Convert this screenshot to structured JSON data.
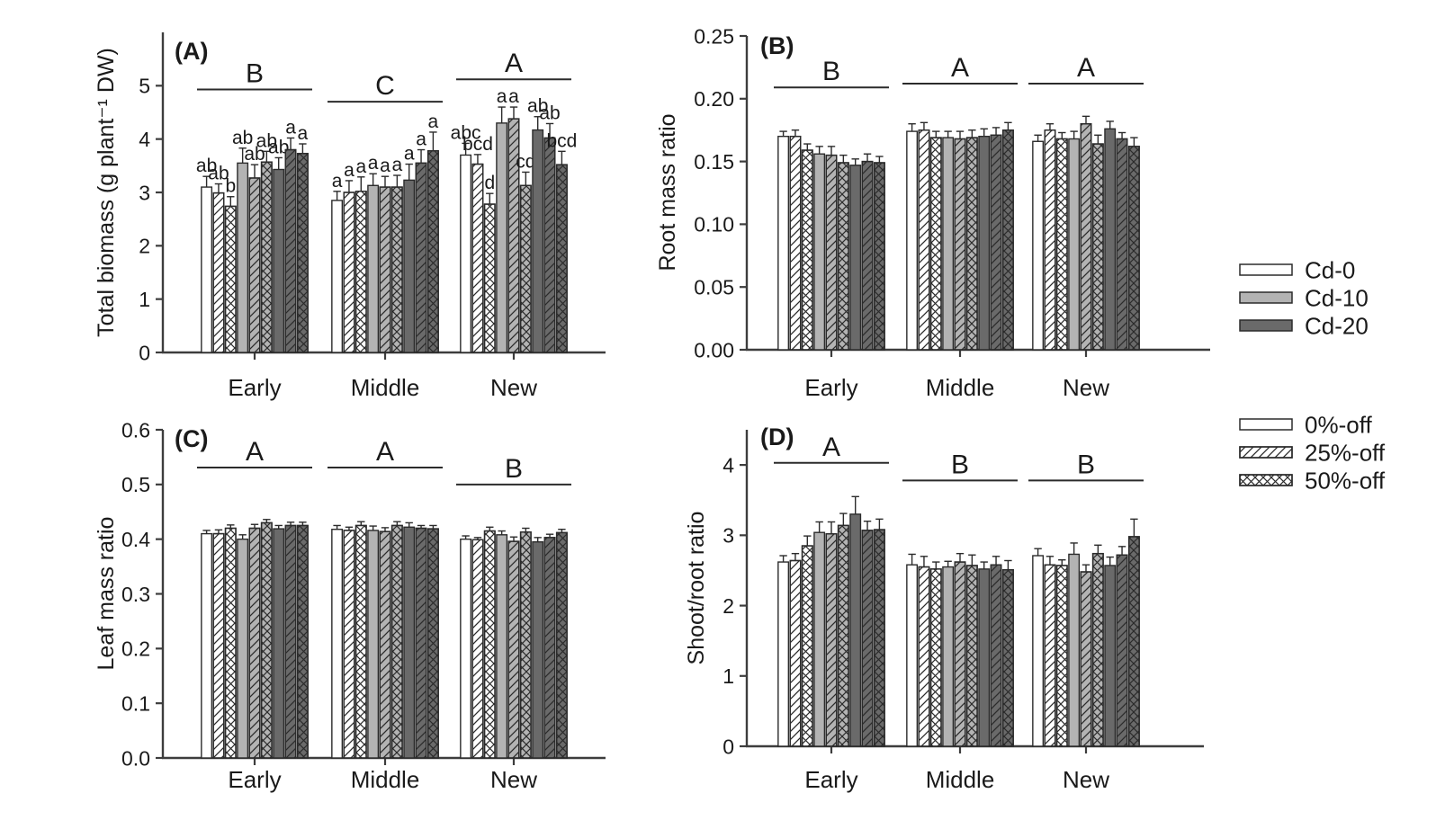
{
  "figure": {
    "title": "Four-panel bar figure: biomass and allocation ratios under Cd and defoliation treatments",
    "categories": [
      "Early",
      "Middle",
      "New"
    ]
  },
  "colors": {
    "background": "#ffffff",
    "cd0_fill": "#ffffff",
    "cd10_fill": "#b3b3b3",
    "cd20_fill": "#6a6a6a",
    "bar_stroke": "#2b2b2b",
    "axis": "#3d3d3d",
    "text": "#1a1a1a"
  },
  "series_styles": [
    {
      "cd": "Cd-0",
      "defoliation": "0%-off",
      "fill": "#ffffff",
      "pattern": "none"
    },
    {
      "cd": "Cd-0",
      "defoliation": "25%-off",
      "fill": "#ffffff",
      "pattern": "diag"
    },
    {
      "cd": "Cd-0",
      "defoliation": "50%-off",
      "fill": "#ffffff",
      "pattern": "cross"
    },
    {
      "cd": "Cd-10",
      "defoliation": "0%-off",
      "fill": "#b3b3b3",
      "pattern": "none"
    },
    {
      "cd": "Cd-10",
      "defoliation": "25%-off",
      "fill": "#b3b3b3",
      "pattern": "diag"
    },
    {
      "cd": "Cd-10",
      "defoliation": "50%-off",
      "fill": "#b3b3b3",
      "pattern": "cross"
    },
    {
      "cd": "Cd-20",
      "defoliation": "0%-off",
      "fill": "#6a6a6a",
      "pattern": "none"
    },
    {
      "cd": "Cd-20",
      "defoliation": "25%-off",
      "fill": "#6a6a6a",
      "pattern": "diag"
    },
    {
      "cd": "Cd-20",
      "defoliation": "50%-off",
      "fill": "#6a6a6a",
      "pattern": "cross"
    }
  ],
  "legends": {
    "cd": {
      "items": [
        {
          "label": "Cd-0",
          "fill": "#ffffff",
          "pattern": "none"
        },
        {
          "label": "Cd-10",
          "fill": "#b3b3b3",
          "pattern": "none"
        },
        {
          "label": "Cd-20",
          "fill": "#6a6a6a",
          "pattern": "none"
        }
      ]
    },
    "defoliation": {
      "items": [
        {
          "label": "0%-off",
          "fill": "#ffffff",
          "pattern": "none"
        },
        {
          "label": "25%-off",
          "fill": "#ffffff",
          "pattern": "diag"
        },
        {
          "label": "50%-off",
          "fill": "#ffffff",
          "pattern": "cross"
        }
      ]
    }
  },
  "chart_data": [
    {
      "type": "bar",
      "panel_label": "(A)",
      "ylabel": "Total biomass (g plant⁻¹ DW)",
      "ylim": [
        0,
        6
      ],
      "ytick_values": [
        0,
        1,
        2,
        3,
        4,
        5
      ],
      "ytick_labels": [
        "0",
        "1",
        "2",
        "3",
        "4",
        "5"
      ],
      "categories": [
        "Early",
        "Middle",
        "New"
      ],
      "group_significance": [
        {
          "letter": "B",
          "line_y": 4.93
        },
        {
          "letter": "C",
          "line_y": 4.7
        },
        {
          "letter": "A",
          "line_y": 5.12
        }
      ],
      "groups": [
        {
          "category": "Early",
          "values": [
            3.1,
            2.99,
            2.74,
            3.55,
            3.27,
            3.57,
            3.43,
            3.8,
            3.73
          ],
          "errors": [
            0.2,
            0.17,
            0.18,
            0.28,
            0.25,
            0.2,
            0.22,
            0.22,
            0.18
          ],
          "bar_letters": [
            "ab",
            "ab",
            "b",
            "ab",
            "ab",
            "ab",
            "ab",
            "a",
            "a"
          ]
        },
        {
          "category": "Middle",
          "values": [
            2.85,
            3.0,
            3.02,
            3.13,
            3.1,
            3.1,
            3.23,
            3.55,
            3.78
          ],
          "errors": [
            0.17,
            0.22,
            0.27,
            0.22,
            0.2,
            0.22,
            0.3,
            0.25,
            0.35
          ],
          "bar_letters": [
            "a",
            "a",
            "a",
            "a",
            "a",
            "a",
            "a",
            "a",
            "a"
          ]
        },
        {
          "category": "New",
          "values": [
            3.7,
            3.53,
            2.78,
            4.3,
            4.38,
            3.13,
            4.17,
            4.02,
            3.52
          ],
          "errors": [
            0.22,
            0.18,
            0.2,
            0.3,
            0.22,
            0.25,
            0.25,
            0.27,
            0.25
          ],
          "bar_letters": [
            "abc",
            "bcd",
            "d",
            "a",
            "a",
            "cd",
            "ab",
            "ab",
            "bcd"
          ]
        }
      ]
    },
    {
      "type": "bar",
      "panel_label": "(B)",
      "ylabel": "Root mass ratio",
      "ylim": [
        0,
        0.25
      ],
      "ytick_values": [
        0,
        0.05,
        0.1,
        0.15,
        0.2,
        0.25
      ],
      "ytick_labels": [
        "0.00",
        "0.05",
        "0.10",
        "0.15",
        "0.20",
        "0.25"
      ],
      "categories": [
        "Early",
        "Middle",
        "New"
      ],
      "group_significance": [
        {
          "letter": "B",
          "line_y": 0.209
        },
        {
          "letter": "A",
          "line_y": 0.212
        },
        {
          "letter": "A",
          "line_y": 0.212
        }
      ],
      "groups": [
        {
          "category": "Early",
          "values": [
            0.17,
            0.17,
            0.159,
            0.156,
            0.155,
            0.149,
            0.147,
            0.15,
            0.149
          ],
          "errors": [
            0.004,
            0.005,
            0.005,
            0.006,
            0.007,
            0.006,
            0.005,
            0.006,
            0.005
          ],
          "bar_letters": []
        },
        {
          "category": "Middle",
          "values": [
            0.174,
            0.175,
            0.169,
            0.169,
            0.168,
            0.169,
            0.17,
            0.171,
            0.175
          ],
          "errors": [
            0.006,
            0.006,
            0.005,
            0.005,
            0.006,
            0.006,
            0.006,
            0.006,
            0.006
          ],
          "bar_letters": []
        },
        {
          "category": "New",
          "values": [
            0.166,
            0.175,
            0.168,
            0.168,
            0.18,
            0.164,
            0.176,
            0.168,
            0.162
          ],
          "errors": [
            0.005,
            0.005,
            0.005,
            0.006,
            0.006,
            0.007,
            0.006,
            0.005,
            0.007
          ],
          "bar_letters": []
        }
      ]
    },
    {
      "type": "bar",
      "panel_label": "(C)",
      "ylabel": "Leaf mass ratio",
      "ylim": [
        0,
        0.6
      ],
      "ytick_values": [
        0,
        0.1,
        0.2,
        0.3,
        0.4,
        0.5,
        0.6
      ],
      "ytick_labels": [
        "0.0",
        "0.1",
        "0.2",
        "0.3",
        "0.4",
        "0.5",
        "0.6"
      ],
      "categories": [
        "Early",
        "Middle",
        "New"
      ],
      "group_significance": [
        {
          "letter": "A",
          "line_y": 0.531
        },
        {
          "letter": "A",
          "line_y": 0.531
        },
        {
          "letter": "B",
          "line_y": 0.5
        }
      ],
      "groups": [
        {
          "category": "Early",
          "values": [
            0.41,
            0.41,
            0.42,
            0.4,
            0.42,
            0.43,
            0.419,
            0.425,
            0.425
          ],
          "errors": [
            0.006,
            0.007,
            0.006,
            0.008,
            0.007,
            0.006,
            0.006,
            0.006,
            0.006
          ],
          "bar_letters": []
        },
        {
          "category": "Middle",
          "values": [
            0.418,
            0.416,
            0.425,
            0.416,
            0.414,
            0.425,
            0.422,
            0.42,
            0.419
          ],
          "errors": [
            0.007,
            0.006,
            0.007,
            0.008,
            0.007,
            0.007,
            0.008,
            0.005,
            0.006
          ],
          "bar_letters": []
        },
        {
          "category": "New",
          "values": [
            0.4,
            0.399,
            0.415,
            0.408,
            0.396,
            0.413,
            0.395,
            0.403,
            0.412
          ],
          "errors": [
            0.006,
            0.004,
            0.007,
            0.007,
            0.008,
            0.007,
            0.008,
            0.006,
            0.006
          ],
          "bar_letters": []
        }
      ]
    },
    {
      "type": "bar",
      "panel_label": "(D)",
      "ylabel": "Shoot/root ratio",
      "ylim": [
        0,
        4.5
      ],
      "ytick_values": [
        0,
        1,
        2,
        3,
        4
      ],
      "ytick_labels": [
        "0",
        "1",
        "2",
        "3",
        "4"
      ],
      "categories": [
        "Early",
        "Middle",
        "New"
      ],
      "group_significance": [
        {
          "letter": "A",
          "line_y": 4.03
        },
        {
          "letter": "B",
          "line_y": 3.78
        },
        {
          "letter": "B",
          "line_y": 3.78
        }
      ],
      "groups": [
        {
          "category": "Early",
          "values": [
            2.62,
            2.64,
            2.85,
            3.04,
            3.02,
            3.14,
            3.3,
            3.07,
            3.08
          ],
          "errors": [
            0.09,
            0.1,
            0.14,
            0.15,
            0.17,
            0.17,
            0.25,
            0.13,
            0.15
          ],
          "bar_letters": []
        },
        {
          "category": "Middle",
          "values": [
            2.58,
            2.55,
            2.52,
            2.55,
            2.62,
            2.57,
            2.52,
            2.58,
            2.51
          ],
          "errors": [
            0.15,
            0.15,
            0.1,
            0.08,
            0.12,
            0.15,
            0.1,
            0.12,
            0.13
          ],
          "bar_letters": []
        },
        {
          "category": "New",
          "values": [
            2.71,
            2.58,
            2.57,
            2.73,
            2.48,
            2.74,
            2.57,
            2.72,
            2.98
          ],
          "errors": [
            0.1,
            0.12,
            0.08,
            0.16,
            0.1,
            0.12,
            0.12,
            0.12,
            0.25
          ],
          "bar_letters": []
        }
      ]
    }
  ]
}
